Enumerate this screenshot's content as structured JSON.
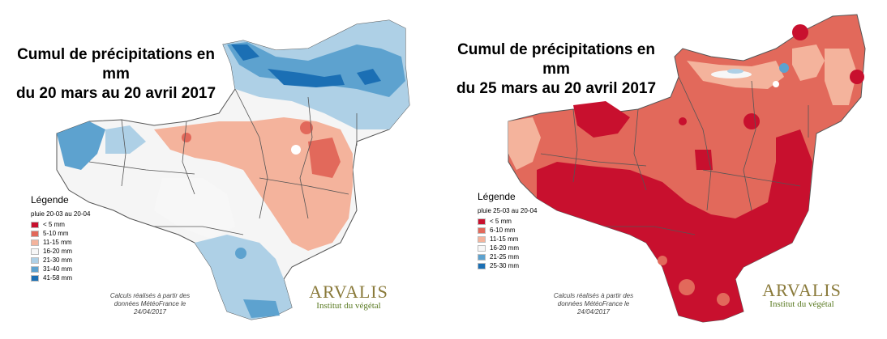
{
  "maps": [
    {
      "title_line1": "Cumul de précipitations en mm",
      "title_line2": "du 20 mars au 20 avril 2017",
      "legend_title": "Légende",
      "legend_subtitle": "pluie 20-03 au 20-04",
      "legend_items": [
        {
          "label": "< 5 mm",
          "color": "#c8102e"
        },
        {
          "label": "5-10 mm",
          "color": "#e2695b"
        },
        {
          "label": "11-15 mm",
          "color": "#f4b39c"
        },
        {
          "label": "16-20 mm",
          "color": "#f7f7f7"
        },
        {
          "label": "21-30 mm",
          "color": "#aed0e6"
        },
        {
          "label": "31-40 mm",
          "color": "#5da2cf"
        },
        {
          "label": "41-58 mm",
          "color": "#1b6fb4"
        }
      ],
      "calc_note": [
        "Calculs réalisés à partir des",
        "données MétéoFrance le",
        "24/04/2017"
      ],
      "logo_name": "ARVALIS",
      "logo_sub": "Institut du végétal"
    },
    {
      "title_line1": "Cumul de précipitations en mm",
      "title_line2": "du 25 mars au 20 avril 2017",
      "legend_title": "Légende",
      "legend_subtitle": "pluie 25-03 au 20-04",
      "legend_items": [
        {
          "label": "< 5 mm",
          "color": "#c8102e"
        },
        {
          "label": "6-10 mm",
          "color": "#e2695b"
        },
        {
          "label": "11-15 mm",
          "color": "#f4b39c"
        },
        {
          "label": "16-20 mm",
          "color": "#f7f7f7"
        },
        {
          "label": "21-25 mm",
          "color": "#5da2cf"
        },
        {
          "label": "25-30 mm",
          "color": "#1b6fb4"
        }
      ],
      "calc_note": [
        "Calculs réalisés à partir des",
        "données MétéoFrance le",
        "24/04/2017"
      ],
      "logo_name": "ARVALIS",
      "logo_sub": "Institut du végétal"
    }
  ]
}
